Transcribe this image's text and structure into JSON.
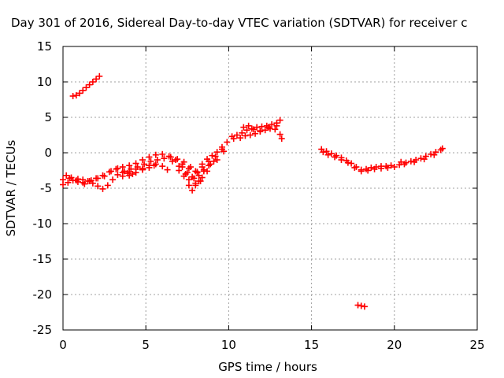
{
  "chart_data": {
    "type": "scatter",
    "title": "Day 301 of 2016, Sidereal Day-to-day VTEC variation (SDTVAR) for receiver c",
    "xlabel": "GPS time / hours",
    "ylabel": "SDTVAR / TECUs",
    "xlim": [
      0,
      25
    ],
    "ylim": [
      -25,
      15
    ],
    "xticks": [
      "0",
      "5",
      "10",
      "15",
      "20",
      "25"
    ],
    "yticks": [
      "15",
      "10",
      "5",
      "0",
      "-5",
      "-10",
      "-15",
      "-20",
      "-25"
    ],
    "grid": true,
    "marker": "plus",
    "color": "#ff0000",
    "series": [
      {
        "points": [
          [
            0.6,
            8.0
          ],
          [
            0.8,
            8.1
          ],
          [
            1.0,
            8.4
          ],
          [
            1.2,
            8.8
          ],
          [
            1.4,
            9.2
          ],
          [
            1.6,
            9.6
          ],
          [
            1.8,
            10.0
          ],
          [
            2.0,
            10.4
          ],
          [
            2.2,
            10.8
          ],
          [
            0.0,
            -4.5
          ],
          [
            0.3,
            -4.2
          ],
          [
            0.6,
            -3.9
          ],
          [
            0.9,
            -3.7
          ],
          [
            1.2,
            -3.8
          ],
          [
            1.5,
            -4.0
          ],
          [
            1.8,
            -4.3
          ],
          [
            2.1,
            -4.7
          ],
          [
            2.4,
            -5.1
          ],
          [
            2.7,
            -4.6
          ],
          [
            3.0,
            -3.8
          ],
          [
            3.3,
            -3.1
          ],
          [
            3.6,
            -2.8
          ],
          [
            3.9,
            -2.9
          ],
          [
            4.2,
            -3.0
          ],
          [
            0.0,
            -3.8
          ],
          [
            0.4,
            -3.6
          ],
          [
            0.8,
            -3.9
          ],
          [
            1.2,
            -4.2
          ],
          [
            1.6,
            -4.0
          ],
          [
            2.0,
            -3.6
          ],
          [
            2.4,
            -3.2
          ],
          [
            2.8,
            -2.7
          ],
          [
            3.2,
            -2.3
          ],
          [
            3.6,
            -2.0
          ],
          [
            4.0,
            -1.8
          ],
          [
            4.4,
            -1.5
          ],
          [
            4.8,
            -1.0
          ],
          [
            5.2,
            -0.6
          ],
          [
            5.6,
            -0.3
          ],
          [
            6.0,
            -0.2
          ],
          [
            6.4,
            -0.5
          ],
          [
            6.8,
            -1.0
          ],
          [
            7.2,
            -1.6
          ],
          [
            7.6,
            -2.2
          ],
          [
            8.0,
            -2.6
          ],
          [
            8.4,
            -2.0
          ],
          [
            8.8,
            -1.2
          ],
          [
            9.2,
            -0.5
          ],
          [
            9.6,
            0.5
          ],
          [
            0.2,
            -3.2
          ],
          [
            0.5,
            -3.5
          ],
          [
            0.9,
            -4.1
          ],
          [
            1.3,
            -4.4
          ],
          [
            1.7,
            -3.9
          ],
          [
            2.1,
            -3.6
          ],
          [
            2.5,
            -3.3
          ],
          [
            2.9,
            -2.6
          ],
          [
            3.3,
            -2.2
          ],
          [
            3.7,
            -2.6
          ],
          [
            4.1,
            -2.3
          ],
          [
            4.5,
            -2.0
          ],
          [
            4.9,
            -1.6
          ],
          [
            5.3,
            -1.2
          ],
          [
            5.7,
            -1.0
          ],
          [
            6.1,
            -0.8
          ],
          [
            6.5,
            -0.6
          ],
          [
            6.9,
            -0.9
          ],
          [
            7.3,
            -1.3
          ],
          [
            7.7,
            -2.0
          ],
          [
            8.1,
            -2.7
          ],
          [
            8.5,
            -2.4
          ],
          [
            8.9,
            -1.6
          ],
          [
            9.3,
            -1.0
          ],
          [
            9.7,
            0.2
          ],
          [
            3.6,
            -3.3
          ],
          [
            4.0,
            -2.7
          ],
          [
            4.4,
            -2.3
          ],
          [
            4.8,
            -2.2
          ],
          [
            5.2,
            -1.8
          ],
          [
            5.6,
            -1.6
          ],
          [
            6.0,
            -1.9
          ],
          [
            6.3,
            -2.4
          ],
          [
            4.0,
            -3.2
          ],
          [
            4.4,
            -2.8
          ],
          [
            4.8,
            -2.4
          ],
          [
            5.2,
            -2.1
          ],
          [
            5.5,
            -1.8
          ],
          [
            7.0,
            -2.5
          ],
          [
            7.3,
            -3.3
          ],
          [
            7.6,
            -3.8
          ],
          [
            7.9,
            -3.6
          ],
          [
            8.2,
            -3.2
          ],
          [
            8.5,
            -2.6
          ],
          [
            8.8,
            -1.8
          ],
          [
            9.1,
            -1.2
          ],
          [
            6.6,
            -1.2
          ],
          [
            7.0,
            -1.9
          ],
          [
            7.4,
            -3.0
          ],
          [
            7.6,
            -4.6
          ],
          [
            7.8,
            -5.3
          ],
          [
            8.0,
            -4.6
          ],
          [
            8.2,
            -4.0
          ],
          [
            8.4,
            -3.5
          ],
          [
            8.7,
            -2.6
          ],
          [
            7.2,
            -2.0
          ],
          [
            7.5,
            -2.8
          ],
          [
            7.8,
            -3.4
          ],
          [
            8.1,
            -2.8
          ],
          [
            8.4,
            -1.6
          ],
          [
            8.7,
            -0.9
          ],
          [
            9.0,
            -0.4
          ],
          [
            9.3,
            0.1
          ],
          [
            9.6,
            0.8
          ],
          [
            9.9,
            1.5
          ],
          [
            8.0,
            -4.3
          ],
          [
            8.3,
            -4.0
          ],
          [
            10.2,
            2.3
          ],
          [
            10.5,
            2.5
          ],
          [
            10.8,
            2.8
          ],
          [
            11.1,
            3.2
          ],
          [
            11.4,
            3.4
          ],
          [
            11.7,
            3.6
          ],
          [
            12.0,
            3.7
          ],
          [
            12.3,
            3.8
          ],
          [
            12.6,
            4.0
          ],
          [
            12.9,
            4.2
          ],
          [
            13.1,
            4.6
          ],
          [
            10.3,
            2.0
          ],
          [
            10.7,
            2.1
          ],
          [
            11.0,
            2.4
          ],
          [
            11.3,
            2.5
          ],
          [
            11.6,
            2.7
          ],
          [
            11.9,
            3.0
          ],
          [
            12.2,
            3.2
          ],
          [
            12.5,
            3.4
          ],
          [
            12.8,
            3.3
          ],
          [
            13.1,
            2.6
          ],
          [
            10.9,
            3.6
          ],
          [
            11.2,
            3.8
          ],
          [
            11.5,
            3.3
          ],
          [
            11.9,
            3.1
          ],
          [
            12.4,
            3.6
          ],
          [
            12.9,
            3.8
          ],
          [
            13.2,
            2.0
          ],
          [
            15.6,
            0.5
          ],
          [
            15.9,
            0.2
          ],
          [
            16.2,
            -0.1
          ],
          [
            16.5,
            -0.4
          ],
          [
            16.8,
            -0.7
          ],
          [
            17.1,
            -1.1
          ],
          [
            17.4,
            -1.5
          ],
          [
            17.7,
            -2.0
          ],
          [
            18.0,
            -2.4
          ],
          [
            18.3,
            -2.3
          ],
          [
            18.6,
            -2.1
          ],
          [
            18.9,
            -2.0
          ],
          [
            19.2,
            -1.9
          ],
          [
            19.5,
            -1.9
          ],
          [
            19.8,
            -1.8
          ],
          [
            15.7,
            0.1
          ],
          [
            16.0,
            -0.3
          ],
          [
            16.4,
            -0.6
          ],
          [
            16.8,
            -1.0
          ],
          [
            17.2,
            -1.4
          ],
          [
            17.6,
            -2.1
          ],
          [
            18.0,
            -2.6
          ],
          [
            18.4,
            -2.5
          ],
          [
            18.8,
            -2.3
          ],
          [
            19.2,
            -2.2
          ],
          [
            19.6,
            -2.1
          ],
          [
            20.0,
            -2.0
          ],
          [
            20.4,
            -1.3
          ],
          [
            20.7,
            -1.4
          ],
          [
            21.0,
            -1.2
          ],
          [
            21.3,
            -1.0
          ],
          [
            21.6,
            -0.8
          ],
          [
            21.9,
            -0.5
          ],
          [
            22.2,
            -0.2
          ],
          [
            22.5,
            0.1
          ],
          [
            22.8,
            0.4
          ],
          [
            20.3,
            -1.7
          ],
          [
            20.6,
            -1.6
          ],
          [
            21.2,
            -1.3
          ],
          [
            21.8,
            -0.9
          ],
          [
            22.4,
            -0.3
          ],
          [
            22.9,
            0.6
          ],
          [
            17.8,
            -21.5
          ],
          [
            18.0,
            -21.6
          ],
          [
            18.2,
            -21.7
          ]
        ]
      }
    ]
  }
}
